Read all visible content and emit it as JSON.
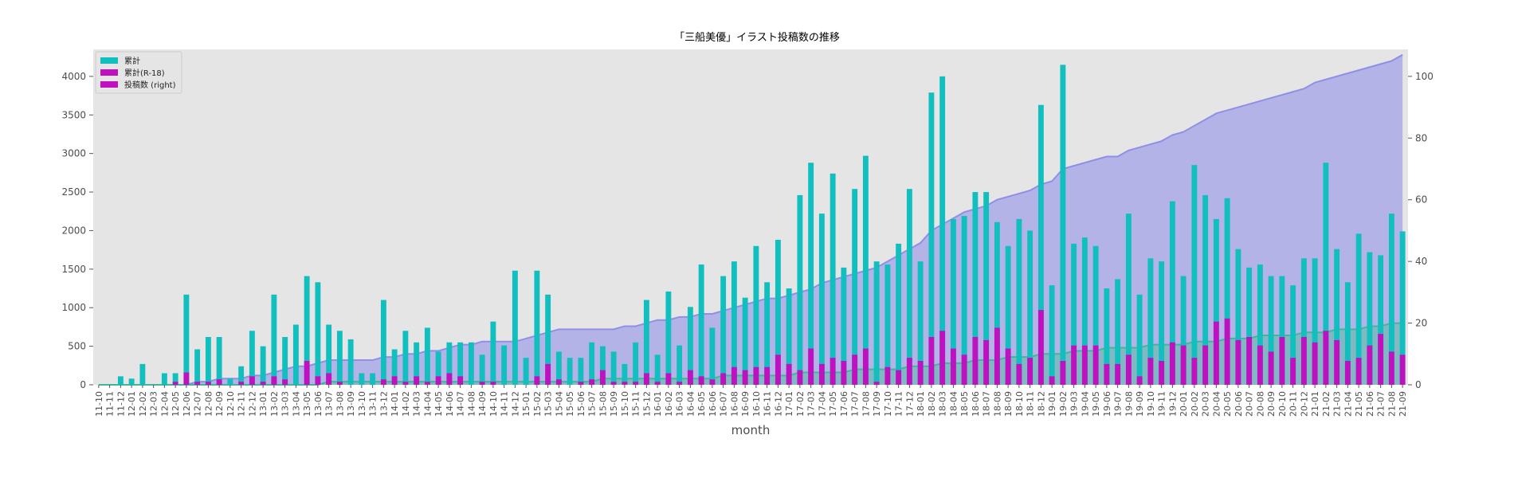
{
  "chart_data": {
    "type": "bar",
    "title": "「三船美優」イラスト投稿数の推移",
    "xlabel": "month",
    "ylabel": "",
    "ylim": [
      0,
      4350
    ],
    "y_ticks": [
      0,
      500,
      1000,
      1500,
      2000,
      2500,
      3000,
      3500,
      4000
    ],
    "ylim_right": [
      0,
      108.75
    ],
    "y_ticks_right": [
      0,
      20,
      40,
      60,
      80,
      100
    ],
    "grid": false,
    "legend_position": "top-left",
    "categories": [
      "11-10",
      "11-11",
      "11-12",
      "12-01",
      "12-02",
      "12-03",
      "12-04",
      "12-05",
      "12-06",
      "12-07",
      "12-08",
      "12-09",
      "12-10",
      "12-11",
      "12-12",
      "13-01",
      "13-02",
      "13-03",
      "13-04",
      "13-05",
      "13-06",
      "13-07",
      "13-08",
      "13-09",
      "13-10",
      "13-11",
      "13-12",
      "14-01",
      "14-02",
      "14-03",
      "14-04",
      "14-05",
      "14-06",
      "14-07",
      "14-08",
      "14-09",
      "14-10",
      "14-11",
      "14-12",
      "15-01",
      "15-02",
      "15-03",
      "15-04",
      "15-05",
      "15-06",
      "15-07",
      "15-08",
      "15-09",
      "15-10",
      "15-11",
      "15-12",
      "16-01",
      "16-02",
      "16-03",
      "16-04",
      "16-05",
      "16-06",
      "16-07",
      "16-08",
      "16-09",
      "16-10",
      "16-11",
      "16-12",
      "17-01",
      "17-02",
      "17-03",
      "17-04",
      "17-05",
      "17-06",
      "17-07",
      "17-08",
      "17-09",
      "17-10",
      "17-11",
      "17-12",
      "18-01",
      "18-02",
      "18-03",
      "18-04",
      "18-05",
      "18-06",
      "18-07",
      "18-08",
      "18-09",
      "18-10",
      "18-11",
      "18-12",
      "19-01",
      "19-02",
      "19-03",
      "19-04",
      "19-05",
      "19-06",
      "19-07",
      "19-08",
      "19-09",
      "19-10",
      "19-11",
      "19-12",
      "20-01",
      "20-02",
      "20-03",
      "20-04",
      "20-05",
      "20-06",
      "20-07",
      "20-08",
      "20-09",
      "20-10",
      "20-11",
      "20-12",
      "21-01",
      "21-02",
      "21-03",
      "21-04",
      "21-05",
      "21-06",
      "21-07",
      "21-08",
      "21-09"
    ],
    "series": [
      {
        "name": "累計",
        "color": "#11bfbf",
        "values": [
          0,
          0,
          110,
          80,
          270,
          0,
          150,
          150,
          1170,
          460,
          620,
          620,
          80,
          240,
          700,
          500,
          1170,
          620,
          780,
          1410,
          1330,
          780,
          700,
          590,
          150,
          150,
          1100,
          460,
          700,
          550,
          740,
          430,
          550,
          550,
          550,
          390,
          820,
          510,
          1480,
          350,
          1480,
          1170,
          430,
          350,
          350,
          550,
          500,
          430,
          270,
          550,
          1100,
          390,
          1210,
          510,
          1010,
          1560,
          740,
          1410,
          1600,
          1130,
          1800,
          1330,
          1880,
          1250,
          2460,
          2880,
          2220,
          2740,
          1520,
          2540,
          2970,
          1600,
          1560,
          1830,
          2540,
          1600,
          3790,
          4000,
          2150,
          2190,
          2500,
          2500,
          2110,
          1800,
          2150,
          2000,
          3630,
          1290,
          4150,
          1830,
          1910,
          1800,
          1250,
          1370,
          2220,
          1170,
          1640,
          1600,
          2380,
          1410,
          2850,
          2460,
          2150,
          2420,
          1760,
          1520,
          1560,
          1410,
          1410,
          1290,
          1640,
          1640,
          2880,
          1760,
          1330,
          1960,
          1720,
          1680,
          2220,
          1990
        ]
      },
      {
        "name": "累計(R-18)",
        "color": "#bf11bf",
        "values": [
          0,
          0,
          0,
          0,
          0,
          0,
          0,
          40,
          160,
          40,
          40,
          70,
          0,
          40,
          110,
          40,
          110,
          70,
          0,
          310,
          110,
          150,
          40,
          0,
          0,
          0,
          70,
          110,
          40,
          110,
          40,
          110,
          150,
          110,
          0,
          40,
          40,
          0,
          0,
          0,
          110,
          270,
          70,
          0,
          40,
          70,
          190,
          40,
          40,
          40,
          150,
          40,
          150,
          40,
          190,
          110,
          70,
          150,
          230,
          190,
          230,
          230,
          390,
          270,
          190,
          470,
          270,
          350,
          310,
          390,
          470,
          40,
          230,
          190,
          350,
          310,
          620,
          700,
          470,
          390,
          620,
          580,
          740,
          470,
          270,
          350,
          970,
          110,
          310,
          510,
          510,
          510,
          270,
          270,
          390,
          110,
          350,
          310,
          550,
          510,
          350,
          510,
          820,
          860,
          580,
          620,
          510,
          430,
          620,
          350,
          620,
          550,
          700,
          580,
          310,
          350,
          510,
          660,
          430,
          390
        ]
      },
      {
        "name": "投稿数 (right)",
        "color": "#bf11bf",
        "values": [
          0,
          0,
          0,
          0,
          0,
          0,
          0,
          0,
          0,
          1,
          1,
          2,
          2,
          2,
          3,
          3,
          4,
          5,
          6,
          6,
          7,
          8,
          8,
          8,
          8,
          8,
          9,
          9,
          10,
          10,
          11,
          11,
          12,
          13,
          13,
          14,
          14,
          14,
          14,
          15,
          16,
          17,
          18,
          18,
          18,
          18,
          18,
          18,
          19,
          19,
          20,
          21,
          21,
          22,
          22,
          23,
          23,
          24,
          25,
          26,
          27,
          28,
          28,
          29,
          30,
          31,
          33,
          34,
          35,
          36,
          37,
          38,
          40,
          42,
          44,
          46,
          50,
          52,
          54,
          56,
          57,
          58,
          60,
          61,
          62,
          63,
          65,
          66,
          70,
          71,
          72,
          73,
          74,
          74,
          76,
          77,
          78,
          79,
          81,
          82,
          84,
          86,
          88,
          89,
          90,
          91,
          92,
          93,
          94,
          95,
          96,
          98,
          99,
          100,
          101,
          102,
          103,
          104,
          105,
          107
        ]
      },
      {
        "name": "",
        "color": "#33bb99",
        "values": [
          0,
          0,
          0,
          0,
          0,
          0,
          0,
          0,
          0,
          0,
          0,
          0,
          0,
          0,
          0,
          0,
          0,
          0,
          0,
          0,
          0,
          1,
          1,
          1,
          1,
          1,
          1,
          1,
          1,
          1,
          1,
          1,
          1,
          1,
          1,
          1,
          1,
          1,
          1,
          1,
          1,
          1,
          1,
          1,
          1,
          1,
          2,
          2,
          2,
          2,
          2,
          2,
          2,
          2,
          2,
          2,
          2,
          3,
          3,
          3,
          3,
          3,
          3,
          3,
          4,
          4,
          4,
          4,
          4,
          5,
          5,
          5,
          5,
          5,
          6,
          6,
          6,
          7,
          7,
          7,
          8,
          8,
          8,
          9,
          9,
          9,
          10,
          10,
          10,
          11,
          11,
          11,
          12,
          12,
          12,
          12,
          13,
          13,
          13,
          13,
          14,
          14,
          14,
          15,
          15,
          15,
          16,
          16,
          16,
          16,
          17,
          17,
          17,
          18,
          18,
          18,
          19,
          19,
          20,
          20
        ]
      }
    ]
  }
}
